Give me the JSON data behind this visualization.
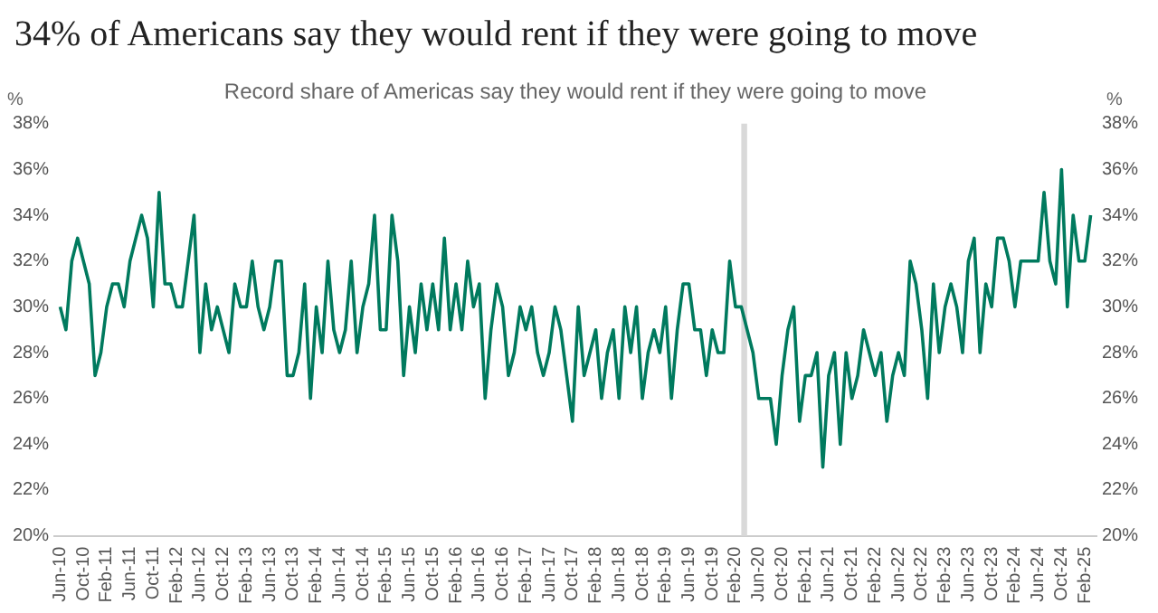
{
  "chart_data": {
    "type": "line",
    "title": "34% of Americans say they would rent if they were going to move",
    "subtitle": "Record share of Americas say they would rent if they were going to move",
    "ylabel": "%",
    "y2label": "%",
    "x": [
      "2010-06",
      "2010-07",
      "2010-08",
      "2010-09",
      "2010-10",
      "2010-11",
      "2010-12",
      "2011-01",
      "2011-02",
      "2011-03",
      "2011-04",
      "2011-05",
      "2011-06",
      "2011-07",
      "2011-08",
      "2011-09",
      "2011-10",
      "2011-11",
      "2011-12",
      "2012-01",
      "2012-02",
      "2012-03",
      "2012-04",
      "2012-05",
      "2012-06",
      "2012-07",
      "2012-08",
      "2012-09",
      "2012-10",
      "2012-11",
      "2012-12",
      "2013-01",
      "2013-02",
      "2013-03",
      "2013-04",
      "2013-05",
      "2013-06",
      "2013-07",
      "2013-08",
      "2013-09",
      "2013-10",
      "2013-11",
      "2013-12",
      "2014-01",
      "2014-02",
      "2014-03",
      "2014-04",
      "2014-05",
      "2014-06",
      "2014-07",
      "2014-08",
      "2014-09",
      "2014-10",
      "2014-11",
      "2014-12",
      "2015-01",
      "2015-02",
      "2015-03",
      "2015-04",
      "2015-05",
      "2015-06",
      "2015-07",
      "2015-08",
      "2015-09",
      "2015-10",
      "2015-11",
      "2015-12",
      "2016-01",
      "2016-02",
      "2016-03",
      "2016-04",
      "2016-05",
      "2016-06",
      "2016-07",
      "2016-08",
      "2016-09",
      "2016-10",
      "2016-11",
      "2016-12",
      "2017-01",
      "2017-02",
      "2017-03",
      "2017-04",
      "2017-05",
      "2017-06",
      "2017-07",
      "2017-08",
      "2017-09",
      "2017-10",
      "2017-11",
      "2017-12",
      "2018-01",
      "2018-02",
      "2018-03",
      "2018-04",
      "2018-05",
      "2018-06",
      "2018-07",
      "2018-08",
      "2018-09",
      "2018-10",
      "2018-11",
      "2018-12",
      "2019-01",
      "2019-02",
      "2019-03",
      "2019-04",
      "2019-05",
      "2019-06",
      "2019-07",
      "2019-08",
      "2019-09",
      "2019-10",
      "2019-11",
      "2019-12",
      "2020-01",
      "2020-02",
      "2020-03",
      "2020-04",
      "2020-05",
      "2020-06",
      "2020-07",
      "2020-08",
      "2020-09",
      "2020-10",
      "2020-11",
      "2020-12",
      "2021-01",
      "2021-02",
      "2021-03",
      "2021-04",
      "2021-05",
      "2021-06",
      "2021-07",
      "2021-08",
      "2021-09",
      "2021-10",
      "2021-11",
      "2021-12",
      "2022-01",
      "2022-02",
      "2022-03",
      "2022-04",
      "2022-05",
      "2022-06",
      "2022-07",
      "2022-08",
      "2022-09",
      "2022-10",
      "2022-11",
      "2022-12",
      "2023-01",
      "2023-02",
      "2023-03",
      "2023-04",
      "2023-05",
      "2023-06",
      "2023-07",
      "2023-08",
      "2023-09",
      "2023-10",
      "2023-11",
      "2023-12",
      "2024-01",
      "2024-02",
      "2024-03",
      "2024-04",
      "2024-05",
      "2024-06",
      "2024-07",
      "2024-08",
      "2024-09",
      "2024-10",
      "2024-11",
      "2024-12",
      "2025-01",
      "2025-02",
      "2025-03"
    ],
    "series": [
      {
        "color": "#007a5e",
        "values": [
          30,
          29,
          32,
          33,
          32,
          31,
          27,
          28,
          30,
          31,
          31,
          30,
          32,
          33,
          34,
          33,
          30,
          35,
          31,
          31,
          30,
          30,
          32,
          34,
          28,
          31,
          29,
          30,
          29,
          28,
          31,
          30,
          30,
          32,
          30,
          29,
          30,
          32,
          32,
          27,
          27,
          28,
          31,
          26,
          30,
          28,
          32,
          29,
          28,
          29,
          32,
          28,
          30,
          31,
          34,
          29,
          29,
          34,
          32,
          27,
          30,
          28,
          31,
          29,
          31,
          29,
          33,
          29,
          31,
          29,
          32,
          30,
          31,
          26,
          29,
          31,
          30,
          27,
          28,
          30,
          29,
          30,
          28,
          27,
          28,
          30,
          29,
          27,
          25,
          30,
          27,
          28,
          29,
          26,
          28,
          29,
          26,
          30,
          28,
          30,
          26,
          28,
          29,
          28,
          30,
          26,
          29,
          31,
          31,
          29,
          29,
          27,
          29,
          28,
          28,
          32,
          30,
          30,
          29,
          28,
          26,
          26,
          26,
          24,
          27,
          29,
          30,
          25,
          27,
          27,
          28,
          23,
          27,
          28,
          24,
          28,
          26,
          27,
          29,
          28,
          27,
          28,
          25,
          27,
          28,
          27,
          32,
          31,
          29,
          26,
          31,
          28,
          30,
          31,
          30,
          28,
          32,
          33,
          28,
          31,
          30,
          33,
          33,
          32,
          30,
          32,
          32,
          32,
          32,
          35,
          32,
          31,
          36,
          30,
          34,
          32,
          32,
          34
        ]
      }
    ],
    "xlim": [
      "2010-05",
      "2025-04"
    ],
    "xticks": [
      {
        "value": "2010-06",
        "label": "Jun-10"
      },
      {
        "value": "2010-10",
        "label": "Oct-10"
      },
      {
        "value": "2011-02",
        "label": "Feb-11"
      },
      {
        "value": "2011-06",
        "label": "Jun-11"
      },
      {
        "value": "2011-10",
        "label": "Oct-11"
      },
      {
        "value": "2012-02",
        "label": "Feb-12"
      },
      {
        "value": "2012-06",
        "label": "Jun-12"
      },
      {
        "value": "2012-10",
        "label": "Oct-12"
      },
      {
        "value": "2013-02",
        "label": "Feb-13"
      },
      {
        "value": "2013-06",
        "label": "Jun-13"
      },
      {
        "value": "2013-10",
        "label": "Oct-13"
      },
      {
        "value": "2014-02",
        "label": "Feb-14"
      },
      {
        "value": "2014-06",
        "label": "Jun-14"
      },
      {
        "value": "2014-10",
        "label": "Oct-14"
      },
      {
        "value": "2015-02",
        "label": "Feb-15"
      },
      {
        "value": "2015-06",
        "label": "Jun-15"
      },
      {
        "value": "2015-10",
        "label": "Oct-15"
      },
      {
        "value": "2016-02",
        "label": "Feb-16"
      },
      {
        "value": "2016-06",
        "label": "Jun-16"
      },
      {
        "value": "2016-10",
        "label": "Oct-16"
      },
      {
        "value": "2017-02",
        "label": "Feb-17"
      },
      {
        "value": "2017-06",
        "label": "Jun-17"
      },
      {
        "value": "2017-10",
        "label": "Oct-17"
      },
      {
        "value": "2018-02",
        "label": "Feb-18"
      },
      {
        "value": "2018-06",
        "label": "Jun-18"
      },
      {
        "value": "2018-10",
        "label": "Oct-18"
      },
      {
        "value": "2019-02",
        "label": "Feb-19"
      },
      {
        "value": "2019-06",
        "label": "Jun-19"
      },
      {
        "value": "2019-10",
        "label": "Oct-19"
      },
      {
        "value": "2020-02",
        "label": "Feb-20"
      },
      {
        "value": "2020-06",
        "label": "Jun-20"
      },
      {
        "value": "2020-10",
        "label": "Oct-20"
      },
      {
        "value": "2021-02",
        "label": "Feb-21"
      },
      {
        "value": "2021-06",
        "label": "Jun-21"
      },
      {
        "value": "2021-10",
        "label": "Oct-21"
      },
      {
        "value": "2022-02",
        "label": "Feb-22"
      },
      {
        "value": "2022-06",
        "label": "Jun-22"
      },
      {
        "value": "2022-10",
        "label": "Oct-22"
      },
      {
        "value": "2023-02",
        "label": "Feb-23"
      },
      {
        "value": "2023-06",
        "label": "Jun-23"
      },
      {
        "value": "2023-10",
        "label": "Oct-23"
      },
      {
        "value": "2024-02",
        "label": "Feb-24"
      },
      {
        "value": "2024-06",
        "label": "Jun-24"
      },
      {
        "value": "2024-10",
        "label": "Oct-24"
      },
      {
        "value": "2025-02",
        "label": "Feb-25"
      }
    ],
    "ylim": [
      20,
      38
    ],
    "yticks": [
      {
        "value": 20,
        "label": "20%"
      },
      {
        "value": 22,
        "label": "22%"
      },
      {
        "value": 24,
        "label": "24%"
      },
      {
        "value": 26,
        "label": "26%"
      },
      {
        "value": 28,
        "label": "28%"
      },
      {
        "value": 30,
        "label": "30%"
      },
      {
        "value": 32,
        "label": "32%"
      },
      {
        "value": 34,
        "label": "34%"
      },
      {
        "value": 36,
        "label": "36%"
      },
      {
        "value": 38,
        "label": "38%"
      }
    ],
    "y2lim": [
      20,
      38
    ],
    "y2ticks": [
      {
        "value": 20,
        "label": "20%"
      },
      {
        "value": 22,
        "label": "22%"
      },
      {
        "value": 24,
        "label": "24%"
      },
      {
        "value": 26,
        "label": "26%"
      },
      {
        "value": 28,
        "label": "28%"
      },
      {
        "value": 30,
        "label": "30%"
      },
      {
        "value": 32,
        "label": "32%"
      },
      {
        "value": 34,
        "label": "34%"
      },
      {
        "value": 36,
        "label": "36%"
      },
      {
        "value": 38,
        "label": "38%"
      }
    ],
    "bands": [
      {
        "axis": "x",
        "from": "2020-03",
        "to": "2020-04",
        "color": "#d9d9d9"
      }
    ],
    "grid": false,
    "legend": false,
    "marker": "none",
    "line_style": "solid"
  }
}
